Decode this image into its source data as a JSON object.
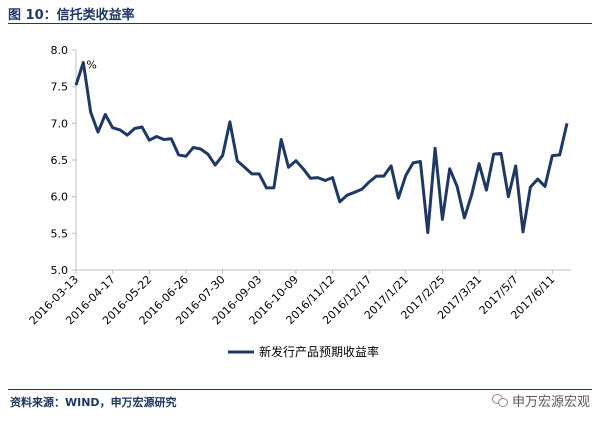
{
  "header": {
    "title": "图 10：信托类收益率"
  },
  "footer": {
    "source": "资料来源：WIND，申万宏源研究",
    "watermark": "申万宏源宏观"
  },
  "colors": {
    "line": "#1f3864",
    "axis": "#bfbfbf",
    "text": "#000000"
  },
  "chart_data": {
    "type": "line",
    "title": "",
    "xlabel": "",
    "ylabel": "",
    "unit_annotation": "%",
    "ylim": [
      5.0,
      8.0
    ],
    "yticks": [
      "5.0",
      "5.5",
      "6.0",
      "6.5",
      "7.0",
      "7.5",
      "8.0"
    ],
    "grid": false,
    "legend_position": "bottom-center",
    "xtick_labels": [
      {
        "label": "2016-03-13",
        "index": 0
      },
      {
        "label": "2016-04-17",
        "index": 5
      },
      {
        "label": "2016-05-22",
        "index": 10
      },
      {
        "label": "2016-06-26",
        "index": 15
      },
      {
        "label": "2016-07-30",
        "index": 20
      },
      {
        "label": "2016-09-03",
        "index": 25
      },
      {
        "label": "2016-10-09",
        "index": 30
      },
      {
        "label": "2016/11/12",
        "index": 35
      },
      {
        "label": "2016/12/17",
        "index": 40
      },
      {
        "label": "2017/1/21",
        "index": 45
      },
      {
        "label": "2017/2/25",
        "index": 50
      },
      {
        "label": "2017/3/31",
        "index": 55
      },
      {
        "label": "2017/5/7",
        "index": 60
      },
      {
        "label": "2017/6/11",
        "index": 65
      }
    ],
    "series": [
      {
        "name": "新发行产品预期收益率",
        "values": [
          7.52,
          7.83,
          7.15,
          6.88,
          7.12,
          6.94,
          6.91,
          6.84,
          6.93,
          6.95,
          6.77,
          6.82,
          6.78,
          6.79,
          6.57,
          6.55,
          6.67,
          6.65,
          6.58,
          6.43,
          6.56,
          7.02,
          6.49,
          6.4,
          6.31,
          6.31,
          6.12,
          6.12,
          6.78,
          6.4,
          6.49,
          6.38,
          6.25,
          6.26,
          6.22,
          6.26,
          5.93,
          6.02,
          6.06,
          6.1,
          6.2,
          6.28,
          6.28,
          6.42,
          5.98,
          6.29,
          6.46,
          6.48,
          5.51,
          6.66,
          5.69,
          6.38,
          6.14,
          5.71,
          6.03,
          6.45,
          6.09,
          6.58,
          6.59,
          6.0,
          6.42,
          5.52,
          6.13,
          6.24,
          6.14,
          6.56,
          6.57,
          7.0
        ]
      }
    ]
  }
}
